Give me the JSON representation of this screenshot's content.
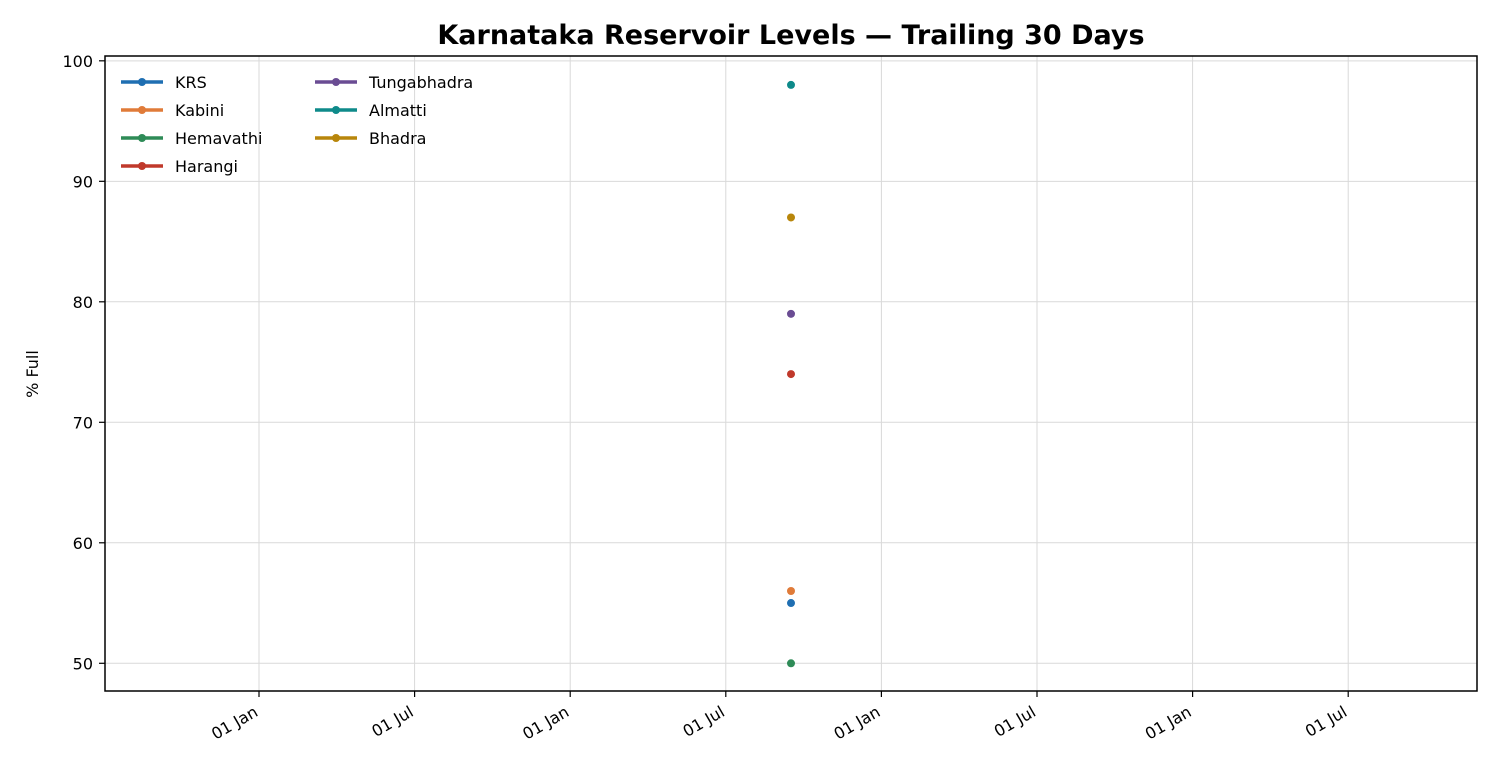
{
  "chart_data": {
    "type": "scatter",
    "title": "Karnataka Reservoir Levels — Trailing 30 Days",
    "xlabel": "",
    "ylabel": "% Full",
    "ylim": [
      47.7,
      100.4
    ],
    "y_ticks": [
      50,
      60,
      70,
      80,
      90,
      100
    ],
    "x_tick_labels": [
      "01 Jan",
      "01 Jul",
      "01 Jan",
      "01 Jul",
      "01 Jan",
      "01 Jul",
      "01 Jan",
      "01 Jul"
    ],
    "grid": true,
    "legend_position": "top-left",
    "series": [
      {
        "name": "KRS",
        "color": "#1f6fb2",
        "points": [
          {
            "y": 55
          }
        ]
      },
      {
        "name": "Kabini",
        "color": "#e07b39",
        "points": [
          {
            "y": 56
          }
        ]
      },
      {
        "name": "Hemavathi",
        "color": "#2e8b57",
        "points": [
          {
            "y": 50
          }
        ]
      },
      {
        "name": "Harangi",
        "color": "#c0392b",
        "points": [
          {
            "y": 74
          }
        ]
      },
      {
        "name": "Tungabhadra",
        "color": "#6a4c93",
        "points": [
          {
            "y": 79
          }
        ]
      },
      {
        "name": "Almatti",
        "color": "#0e8a8a",
        "points": [
          {
            "y": 98
          }
        ]
      },
      {
        "name": "Bhadra",
        "color": "#b8860b",
        "points": [
          {
            "y": 87
          }
        ]
      }
    ]
  }
}
